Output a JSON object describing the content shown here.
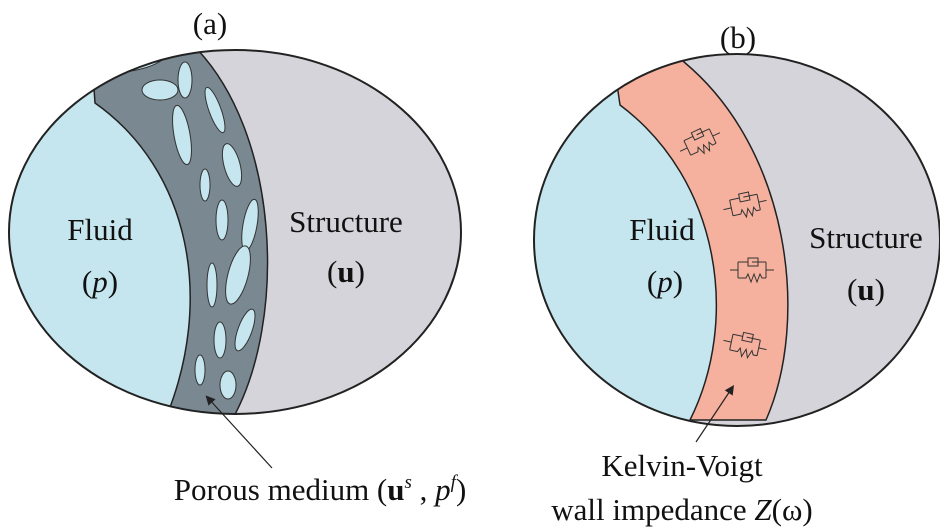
{
  "panels": [
    {
      "label": "(a)",
      "fluid": {
        "name": "Fluid",
        "symbol": [
          "(",
          "p",
          ")"
        ]
      },
      "structure": {
        "name": "Structure",
        "symbol": [
          "(",
          "u",
          ")"
        ]
      },
      "layer": {
        "lines": [
          [
            "Porous medium (",
            "u",
            "s",
            " , ",
            "p",
            "f",
            ")"
          ]
        ]
      }
    },
    {
      "label": "(b)",
      "fluid": {
        "name": "Fluid",
        "symbol": [
          "(",
          "p",
          ")"
        ]
      },
      "structure": {
        "name": "Structure",
        "symbol": [
          "(",
          "u",
          ")"
        ]
      },
      "layer": {
        "lines": [
          [
            "Kelvin-Voigt"
          ],
          [
            "wall impedance ",
            "Z",
            "(ω)"
          ]
        ]
      }
    }
  ]
}
